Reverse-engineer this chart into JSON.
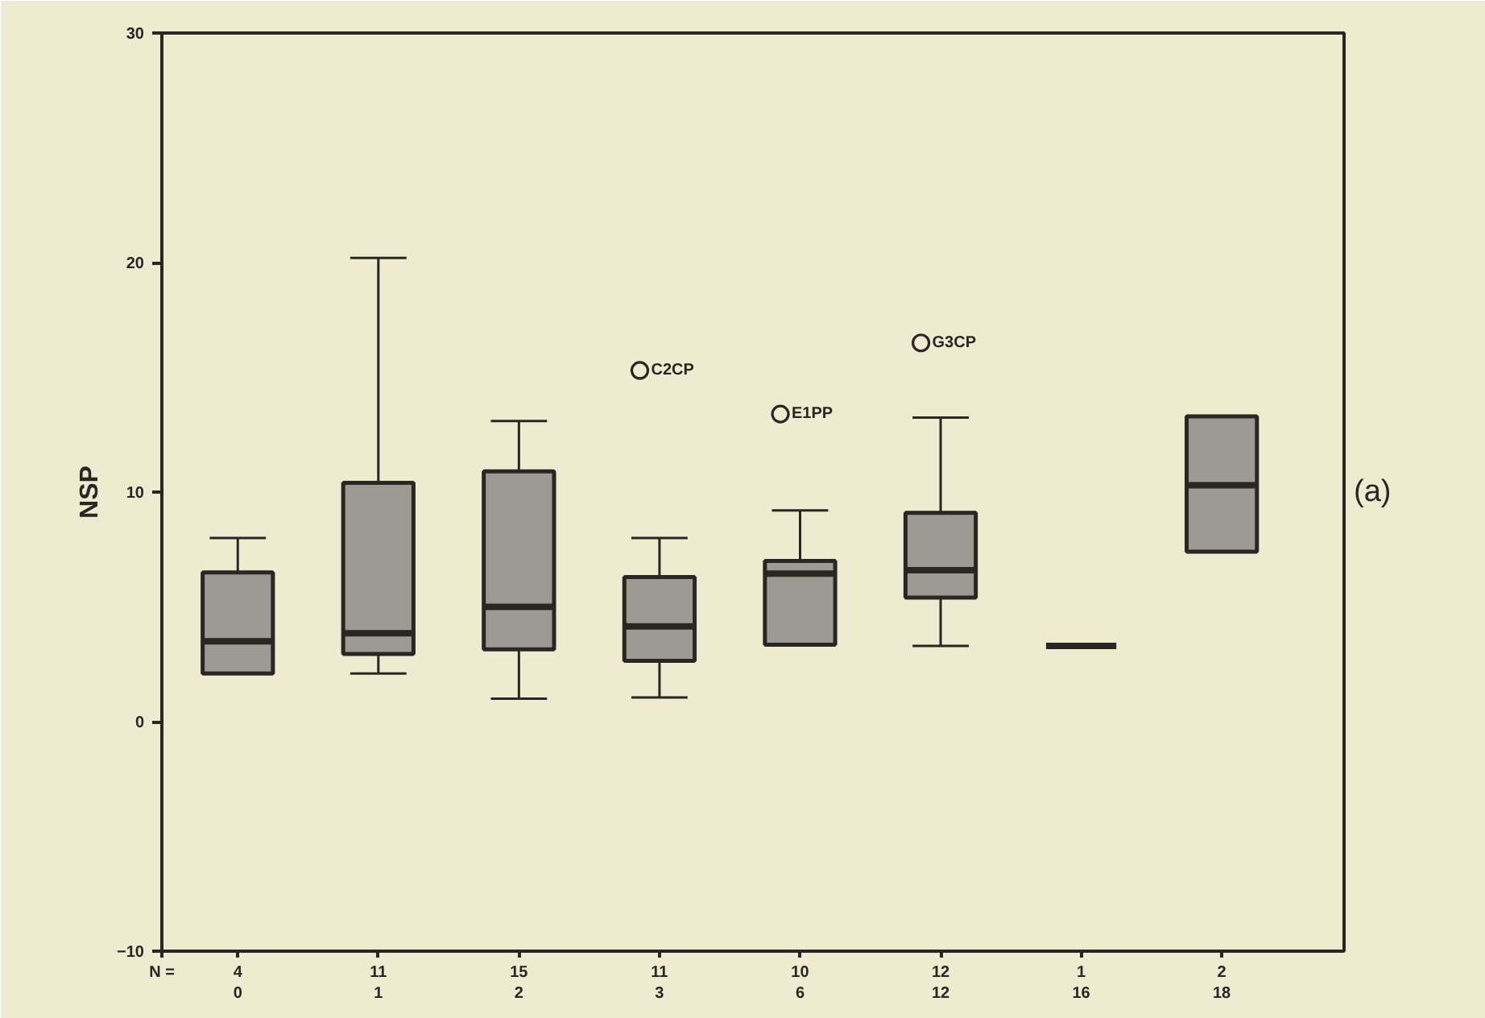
{
  "chart_data": {
    "type": "box",
    "ylabel": "NSP",
    "categories": [
      "4\n0",
      "11\n1",
      "15\n2",
      "11\n3",
      "10\n6",
      "12\n12",
      "1\n16",
      "2\n18"
    ],
    "boxes": [
      {
        "low": 2.1,
        "q1": 2.1,
        "median": 3.5,
        "q3": 6.5,
        "high": 8.0
      },
      {
        "low": 2.1,
        "q1": 2.95,
        "median": 3.85,
        "q3": 10.4,
        "high": 20.2
      },
      {
        "low": 1.0,
        "q1": 3.15,
        "median": 5.0,
        "q3": 10.9,
        "high": 13.1
      },
      {
        "low": 1.05,
        "q1": 2.65,
        "median": 4.15,
        "q3": 6.3,
        "high": 8.0,
        "outliers": [
          15.3
        ]
      },
      {
        "low": 3.35,
        "q1": 3.35,
        "median": 6.45,
        "q3": 7.0,
        "high": 9.2,
        "outliers": [
          13.4
        ]
      },
      {
        "low": 3.3,
        "q1": 5.4,
        "median": 6.6,
        "q3": 9.1,
        "high": 13.25,
        "outliers": [
          16.5
        ]
      },
      {
        "low": 3.3,
        "q1": 3.3,
        "median": 3.3,
        "q3": 3.3,
        "high": 3.3
      },
      {
        "low": 7.4,
        "q1": 7.4,
        "median": 10.3,
        "q3": 13.3,
        "high": 13.3
      }
    ],
    "colors": [
      "#9c9a92",
      "#9c9a92",
      "#9c9a92",
      "#9c9a92",
      "#9c9a92",
      "#9c9a92",
      "#2a2623",
      "#9c9a92"
    ],
    "ylim": [
      -10,
      30
    ],
    "yticks": [
      -10,
      0,
      10,
      20,
      30
    ],
    "grid": false,
    "annotations": [
      "N =",
      "(a)",
      "C2CP",
      "E1PP",
      "G3CP"
    ]
  }
}
